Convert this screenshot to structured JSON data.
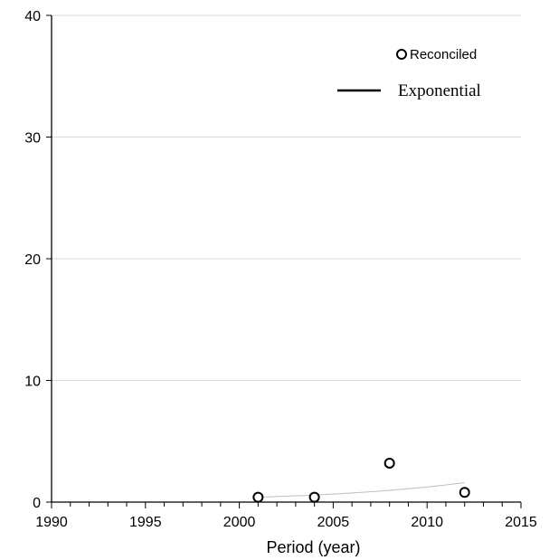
{
  "chart_data": {
    "type": "scatter",
    "title": "",
    "xlabel": "Period (year)",
    "ylabel": "",
    "xlim": [
      1990,
      2015
    ],
    "ylim": [
      0,
      40
    ],
    "x_major_ticks": [
      1990,
      1995,
      2000,
      2005,
      2010,
      2015
    ],
    "y_major_ticks": [
      0,
      10,
      20,
      30,
      40
    ],
    "grid": "horizontal",
    "legend_placement": "top-right",
    "series": [
      {
        "name": "Reconciled",
        "kind": "scatter",
        "marker": "open-circle",
        "x": [
          2001,
          2004,
          2008,
          2012
        ],
        "y": [
          0.4,
          0.4,
          3.2,
          0.8
        ]
      },
      {
        "name": "Exponential",
        "kind": "trendline",
        "x": [
          2001,
          2004,
          2008,
          2012
        ],
        "y": [
          0.4,
          0.6,
          1.0,
          1.6
        ]
      }
    ]
  }
}
